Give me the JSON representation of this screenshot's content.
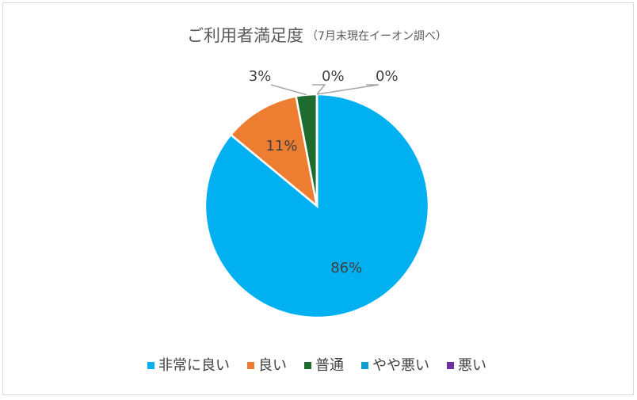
{
  "chart_data": {
    "type": "pie",
    "title": "ご利用者満足度",
    "subtitle": "（7月末現在イーオン調べ）",
    "categories": [
      "非常に良い",
      "良い",
      "普通",
      "やや悪い",
      "悪い"
    ],
    "values": [
      86,
      11,
      3,
      0,
      0
    ],
    "value_labels": [
      "86%",
      "11%",
      "3%",
      "0%",
      "0%"
    ],
    "colors": [
      "#00b0f0",
      "#ed7d31",
      "#1e6b2e",
      "#0f9ed5",
      "#7030a0"
    ],
    "legend": "bottom"
  }
}
